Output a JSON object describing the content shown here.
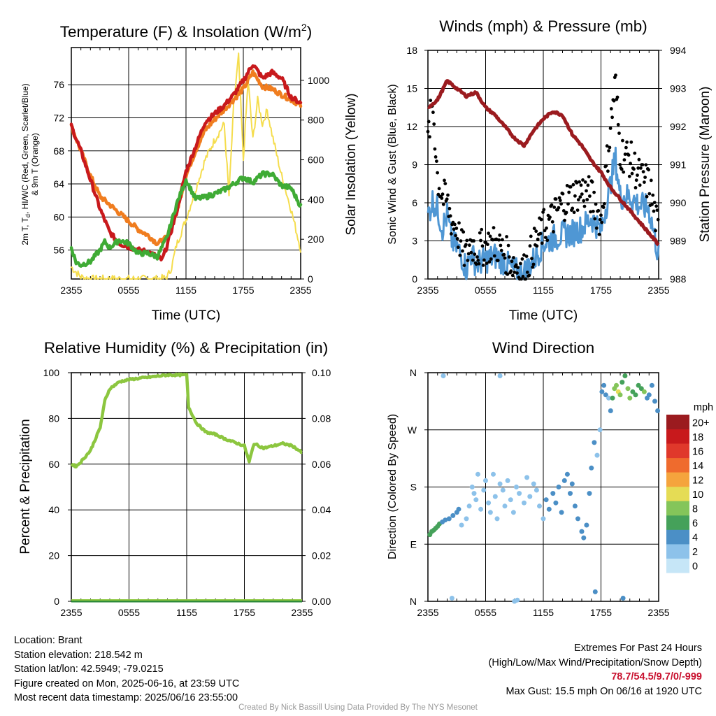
{
  "chart_data": [
    {
      "type": "line",
      "title": "Temperature (F) & Insolation (W/m²)",
      "xlabel": "Time (UTC)",
      "ylabel_left": "2m T, Td, HI/WC (Red, Green, Scarlet/Blue) & 9m T (Orange)",
      "ylabel_right": "Solar Insolation (Yellow)",
      "x_ticks": [
        "2355",
        "0555",
        "1155",
        "1755",
        "2355"
      ],
      "x_range_hours": [
        0,
        24
      ],
      "ylim_left": [
        52.5,
        80.5
      ],
      "y_ticks_left": [
        56,
        60,
        64,
        68,
        72,
        76
      ],
      "ylim_right": [
        0,
        1165
      ],
      "y_ticks_right": [
        0,
        200,
        400,
        600,
        800,
        1000
      ],
      "series": [
        {
          "name": "2m T",
          "color": "#c8191c",
          "axis": "left",
          "x": [
            0,
            1,
            2,
            3,
            4,
            5,
            6,
            7,
            8,
            9,
            9.5,
            10,
            11,
            12,
            13,
            14,
            15,
            16,
            17,
            18,
            19,
            20,
            21,
            22,
            23,
            24
          ],
          "y": [
            71,
            68,
            64.5,
            61,
            58.2,
            56.8,
            56.4,
            56.0,
            55.8,
            55.2,
            54.8,
            56.5,
            60.5,
            65.5,
            68.5,
            71.5,
            72.5,
            73.5,
            74.8,
            76.5,
            78.5,
            76.8,
            77.5,
            76.8,
            74.5,
            73.8
          ]
        },
        {
          "name": "9m T",
          "color": "#f07d1f",
          "axis": "left",
          "x": [
            0,
            1,
            2,
            3,
            4,
            5,
            6,
            7,
            8,
            9,
            10,
            11,
            12,
            13,
            14,
            15,
            16,
            17,
            18,
            19,
            20,
            21,
            22,
            23,
            24
          ],
          "y": [
            71,
            68,
            65,
            62.5,
            61.5,
            60.5,
            59.5,
            58.5,
            57.8,
            56.8,
            57.5,
            60.5,
            65,
            68,
            70.5,
            71.8,
            73,
            74.2,
            75.5,
            77.5,
            75.8,
            75.5,
            74.8,
            74.2,
            73.5
          ]
        },
        {
          "name": "Td",
          "color": "#3fab35",
          "axis": "left",
          "x": [
            0,
            0.5,
            1,
            2,
            3,
            3.5,
            4,
            5,
            6,
            7,
            8,
            9,
            10,
            11,
            12,
            13,
            14,
            15,
            16,
            17,
            18,
            19,
            20,
            21,
            22,
            23,
            24
          ],
          "y": [
            56.3,
            54.5,
            54.2,
            54.6,
            56,
            57,
            56.3,
            57.2,
            56.8,
            55.6,
            55.6,
            55.2,
            57.5,
            61.5,
            64.5,
            62.2,
            62.4,
            62.8,
            63.3,
            64,
            64.8,
            64.2,
            65.2,
            65.2,
            63.8,
            63.5,
            61.3
          ]
        },
        {
          "name": "Solar Insolation",
          "color": "#f5dd4e",
          "axis": "right",
          "x": [
            0,
            1,
            2,
            3,
            4,
            5,
            6,
            7,
            8,
            9,
            10,
            10.5,
            11,
            12,
            13,
            14,
            15,
            16,
            16.5,
            17,
            17.5,
            18,
            18.5,
            19,
            19.5,
            20,
            20.5,
            21,
            22,
            23,
            24
          ],
          "y": [
            60,
            10,
            0,
            0,
            0,
            0,
            0,
            0,
            0,
            0,
            5,
            60,
            170,
            300,
            450,
            600,
            700,
            780,
            420,
            880,
            1120,
            600,
            1000,
            700,
            900,
            780,
            850,
            730,
            520,
            350,
            150
          ]
        }
      ]
    },
    {
      "type": "line",
      "title": "Winds (mph) & Pressure (mb)",
      "xlabel": "Time (UTC)",
      "ylabel_left": "Sonic Wind & Gust (Blue, Black)",
      "ylabel_right": "Station Pressure (Maroon)",
      "x_ticks": [
        "2355",
        "0555",
        "1155",
        "1755",
        "2355"
      ],
      "x_range_hours": [
        0,
        24
      ],
      "ylim_left": [
        0,
        18
      ],
      "y_ticks_left": [
        0,
        3,
        6,
        9,
        12,
        15,
        18
      ],
      "ylim_right": [
        988,
        994
      ],
      "y_ticks_right": [
        988,
        989,
        990,
        991,
        992,
        993,
        994
      ],
      "series": [
        {
          "name": "Sonic Wind",
          "color": "#4f97d4",
          "axis": "left",
          "x": [
            0,
            0.5,
            1,
            1.5,
            2,
            2.5,
            3,
            3.5,
            4,
            4.5,
            5,
            6,
            7,
            8,
            9,
            10,
            11,
            12,
            13,
            14,
            15,
            16,
            17,
            18,
            19,
            19.5,
            20,
            21,
            22,
            23,
            24
          ],
          "y": [
            5,
            6.2,
            5.5,
            4,
            5,
            3,
            2.5,
            1.8,
            0.8,
            2,
            1.2,
            1.5,
            1.8,
            1.3,
            0.6,
            0.5,
            1.5,
            2.8,
            3.2,
            3.5,
            3.6,
            4,
            4.8,
            3.8,
            7.5,
            9.5,
            6.5,
            6.5,
            5.8,
            5.5,
            1.8
          ]
        },
        {
          "name": "Gust",
          "color": "#000000",
          "axis": "left",
          "x": [
            0,
            0.5,
            1,
            1.5,
            2,
            2.5,
            3,
            3.5,
            4,
            4.5,
            5,
            6,
            7,
            8,
            9,
            10,
            11,
            12,
            13,
            14,
            15,
            16,
            17,
            18,
            19,
            19.5,
            20,
            21,
            22,
            23,
            24
          ],
          "y": [
            11,
            14,
            8,
            6.5,
            6,
            4.5,
            4,
            2.5,
            1.8,
            3,
            2.2,
            2.6,
            2.8,
            2,
            1.2,
            0.6,
            2.5,
            4,
            4.8,
            6,
            6.5,
            7,
            6.5,
            4.5,
            12,
            15.5,
            10,
            9.5,
            8,
            7.5,
            3.5
          ]
        },
        {
          "name": "Station Pressure",
          "color": "#9b1b1f",
          "axis": "right",
          "x": [
            0,
            1,
            2,
            3,
            4,
            5,
            6,
            7,
            8,
            9,
            10,
            11,
            12,
            13,
            14,
            15,
            16,
            17,
            18,
            19,
            20,
            21,
            22,
            23,
            24
          ],
          "y": [
            992.5,
            992.7,
            993.2,
            993.0,
            992.8,
            992.9,
            992.5,
            992.3,
            992.0,
            991.7,
            991.5,
            991.9,
            992.2,
            992.4,
            992.3,
            991.8,
            991.5,
            991.1,
            990.8,
            990.4,
            990.1,
            989.8,
            989.5,
            989.2,
            988.9
          ]
        }
      ]
    },
    {
      "type": "line",
      "title": "Relative Humidity (%) & Precipitation (in)",
      "ylabel_left": "Percent & Precipitation",
      "x_ticks": [
        "2355",
        "0555",
        "1155",
        "1755",
        "2355"
      ],
      "x_range_hours": [
        0,
        24
      ],
      "ylim_left": [
        0,
        100
      ],
      "y_ticks_left": [
        0,
        20,
        40,
        60,
        80,
        100
      ],
      "ylim_right": [
        0,
        0.1
      ],
      "y_ticks_right": [
        "0.00",
        "0.02",
        "0.04",
        "0.06",
        "0.08",
        "0.10"
      ],
      "series": [
        {
          "name": "Relative Humidity",
          "color": "#8cc63f",
          "axis": "left",
          "x": [
            0,
            0.5,
            1,
            2,
            3,
            3.5,
            4,
            5,
            6,
            7,
            8,
            9,
            10,
            11,
            12,
            12.2,
            13,
            14,
            15,
            16,
            17,
            18,
            18.5,
            19,
            20,
            21,
            22,
            23,
            24
          ],
          "y": [
            60,
            59,
            61,
            66,
            76,
            88,
            93,
            96,
            97,
            97.5,
            98,
            98.5,
            99,
            99,
            99,
            85,
            78,
            74,
            73,
            71,
            69.5,
            68,
            61,
            69,
            67,
            68,
            69,
            68,
            65
          ]
        },
        {
          "name": "Precipitation",
          "color": "#2e8b3a",
          "axis": "right",
          "x": [
            0,
            24
          ],
          "y": [
            0,
            0
          ]
        }
      ]
    },
    {
      "type": "scatter",
      "title": "Wind Direction",
      "ylabel": "Direction (Colored By Speed)",
      "x_ticks": [
        "2355",
        "0555",
        "1155",
        "1755",
        "2355"
      ],
      "x_range_hours": [
        0,
        24
      ],
      "y_ticks": [
        "N",
        "E",
        "S",
        "W",
        "N"
      ],
      "ylim_degrees": [
        0,
        360
      ],
      "colorbar": {
        "label": "mph",
        "labels": [
          "0",
          "2",
          "4",
          "6",
          "8",
          "10",
          "12",
          "14",
          "16",
          "18",
          "20+"
        ],
        "colors": [
          "#c6e6f7",
          "#8dc2ea",
          "#4b8fc6",
          "#45a15a",
          "#84c55a",
          "#e5dc55",
          "#f5a43d",
          "#ef6b2d",
          "#e0382b",
          "#c8191c",
          "#9b1b1f"
        ]
      },
      "points": [
        [
          0.2,
          105,
          5
        ],
        [
          0.4,
          110,
          6
        ],
        [
          0.6,
          112,
          6
        ],
        [
          0.8,
          115,
          5
        ],
        [
          1.0,
          118,
          6
        ],
        [
          1.2,
          122,
          5
        ],
        [
          1.5,
          125,
          4
        ],
        [
          1.8,
          128,
          4
        ],
        [
          2.2,
          130,
          4
        ],
        [
          2.6,
          135,
          3
        ],
        [
          3.0,
          140,
          3
        ],
        [
          3.2,
          145,
          4
        ],
        [
          3.5,
          120,
          2
        ],
        [
          4.0,
          130,
          2
        ],
        [
          4.3,
          150,
          2
        ],
        [
          4.6,
          180,
          1
        ],
        [
          4.8,
          170,
          2
        ],
        [
          5.0,
          160,
          2
        ],
        [
          5.2,
          200,
          2
        ],
        [
          5.5,
          145,
          1
        ],
        [
          5.8,
          175,
          2
        ],
        [
          6.0,
          190,
          1
        ],
        [
          6.3,
          155,
          1
        ],
        [
          6.5,
          140,
          2
        ],
        [
          6.8,
          200,
          1
        ],
        [
          7.0,
          165,
          1
        ],
        [
          7.2,
          130,
          1
        ],
        [
          7.5,
          185,
          2
        ],
        [
          7.8,
          175,
          1
        ],
        [
          8.0,
          150,
          2
        ],
        [
          8.3,
          190,
          1
        ],
        [
          8.6,
          160,
          1
        ],
        [
          8.9,
          140,
          1
        ],
        [
          9.2,
          180,
          1
        ],
        [
          9.5,
          170,
          2
        ],
        [
          10.0,
          155,
          1
        ],
        [
          10.3,
          195,
          2
        ],
        [
          10.6,
          165,
          1
        ],
        [
          11.0,
          185,
          2
        ],
        [
          11.3,
          175,
          2
        ],
        [
          11.6,
          150,
          1
        ],
        [
          12.0,
          130,
          2
        ],
        [
          12.3,
          160,
          3
        ],
        [
          12.6,
          145,
          3
        ],
        [
          13.0,
          170,
          3
        ],
        [
          13.3,
          155,
          4
        ],
        [
          13.6,
          180,
          4
        ],
        [
          13.9,
          140,
          4
        ],
        [
          14.2,
          190,
          4
        ],
        [
          14.5,
          200,
          4
        ],
        [
          14.8,
          170,
          3
        ],
        [
          15.0,
          185,
          3
        ],
        [
          15.3,
          150,
          3
        ],
        [
          15.6,
          130,
          3
        ],
        [
          16.0,
          110,
          3
        ],
        [
          16.2,
          100,
          4
        ],
        [
          16.5,
          120,
          3
        ],
        [
          16.8,
          170,
          4
        ],
        [
          17.0,
          210,
          4
        ],
        [
          17.3,
          250,
          3
        ],
        [
          17.6,
          230,
          2
        ],
        [
          17.9,
          270,
          2
        ],
        [
          18.1,
          330,
          4
        ],
        [
          18.3,
          340,
          4
        ],
        [
          18.5,
          325,
          4
        ],
        [
          18.8,
          320,
          2
        ],
        [
          19.0,
          300,
          4
        ],
        [
          19.2,
          320,
          6
        ],
        [
          19.4,
          335,
          7
        ],
        [
          19.6,
          340,
          8
        ],
        [
          19.8,
          330,
          10
        ],
        [
          20.0,
          325,
          7
        ],
        [
          20.2,
          345,
          6
        ],
        [
          20.5,
          355,
          6
        ],
        [
          20.8,
          335,
          7
        ],
        [
          21.0,
          320,
          7
        ],
        [
          21.3,
          330,
          6
        ],
        [
          21.6,
          325,
          6
        ],
        [
          21.9,
          340,
          6
        ],
        [
          22.2,
          335,
          6
        ],
        [
          22.5,
          330,
          7
        ],
        [
          22.8,
          320,
          4
        ],
        [
          23.0,
          325,
          4
        ],
        [
          23.3,
          340,
          4
        ],
        [
          23.6,
          315,
          3
        ],
        [
          23.9,
          300,
          3
        ],
        [
          1.6,
          355,
          1
        ],
        [
          9.0,
          0,
          1
        ],
        [
          9.3,
          2,
          1
        ],
        [
          20.3,
          5,
          4
        ],
        [
          7.5,
          355,
          2
        ],
        [
          2.5,
          5,
          1
        ],
        [
          17.4,
          15,
          4
        ]
      ]
    }
  ],
  "info_left": {
    "location": "Location: Brant",
    "elevation": "Station elevation: 218.542 m",
    "latlon": "Station lat/lon: 42.5949; -79.0215",
    "created": "Figure created on Mon, 2025-06-16, at 23:59 UTC",
    "recent": "Most recent data timestamp: 2025/06/16 23:55:00"
  },
  "info_right": {
    "title": "Extremes For Past 24 Hours",
    "subtitle": "(High/Low/Max Wind/Precipitation/Snow Depth)",
    "values": "78.7/54.5/9.7/0/-999",
    "max_gust": "Max Gust: 15.5 mph On 06/16 at 1920 UTC"
  },
  "credit": "Created By Nick Bassill Using Data Provided By The NYS Mesonet"
}
